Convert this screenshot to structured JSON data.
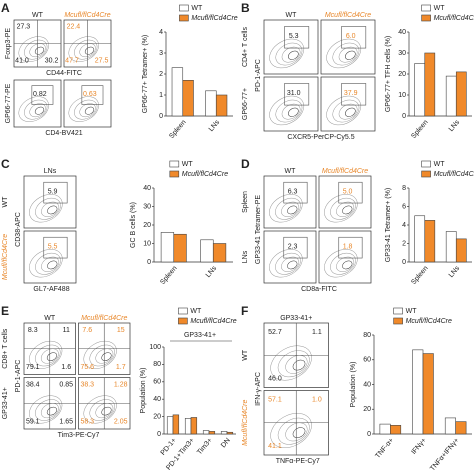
{
  "chart_data": [
    {
      "type": "bar",
      "y_label": "GP66-77+ Tetramer+ (%)",
      "categories": [
        "Spleen",
        "LNs"
      ],
      "series": [
        {
          "name": "WT",
          "color": "#ffffff",
          "values": [
            2.3,
            1.2
          ]
        },
        {
          "name": "Mcufl/flCd4Cre",
          "color": "#f0892a",
          "values": [
            1.7,
            1.0
          ]
        }
      ],
      "ylim": [
        0,
        4
      ],
      "yticks": [
        0,
        1,
        2,
        3,
        4
      ]
    },
    {
      "type": "bar",
      "y_label": "GP66-77+ TFH cells (%)",
      "categories": [
        "Spleen",
        "LNs"
      ],
      "series": [
        {
          "name": "WT",
          "color": "#ffffff",
          "values": [
            25,
            19
          ]
        },
        {
          "name": "Mcufl/flCd4Cre",
          "color": "#f0892a",
          "values": [
            30,
            21
          ]
        }
      ],
      "ylim": [
        0,
        40
      ],
      "yticks": [
        0,
        10,
        20,
        30,
        40
      ]
    },
    {
      "type": "bar",
      "y_label": "GC B cells (%)",
      "categories": [
        "Spleen",
        "LNs"
      ],
      "series": [
        {
          "name": "WT",
          "color": "#ffffff",
          "values": [
            16,
            12
          ]
        },
        {
          "name": "Mcufl/flCd4Cre",
          "color": "#f0892a",
          "values": [
            15,
            10
          ]
        }
      ],
      "ylim": [
        0,
        40
      ],
      "yticks": [
        0,
        10,
        20,
        30,
        40
      ]
    },
    {
      "type": "bar",
      "y_label": "GP33-41 Tetramer+ (%)",
      "categories": [
        "Spleen",
        "LNs"
      ],
      "series": [
        {
          "name": "WT",
          "color": "#ffffff",
          "values": [
            5,
            3.3
          ]
        },
        {
          "name": "Mcufl/flCd4Cre",
          "color": "#f0892a",
          "values": [
            4.5,
            2.5
          ]
        }
      ],
      "ylim": [
        0,
        8
      ],
      "yticks": [
        0,
        2,
        4,
        6,
        8
      ]
    },
    {
      "type": "bar",
      "title": "GP33-41+",
      "y_label": "Population (%)",
      "categories": [
        "PD-1+",
        "PD-1+Tim3+",
        "Tim3+",
        "DN"
      ],
      "series": [
        {
          "name": "WT",
          "color": "#ffffff",
          "values": [
            20,
            18,
            4,
            3
          ]
        },
        {
          "name": "Mcufl/flCd4Cre",
          "color": "#f0892a",
          "values": [
            22,
            19,
            3,
            2
          ]
        }
      ],
      "ylim": [
        0,
        100
      ],
      "yticks": [
        0,
        20,
        40,
        60,
        80,
        100
      ]
    },
    {
      "type": "bar",
      "y_label": "Population (%)",
      "categories": [
        "TNF-α+",
        "IFNγ+",
        "TNFα+IFNγ+"
      ],
      "series": [
        {
          "name": "WT",
          "color": "#ffffff",
          "values": [
            8,
            68,
            13
          ]
        },
        {
          "name": "Mcufl/flCd4Cre",
          "color": "#f0892a",
          "values": [
            7,
            65,
            10
          ]
        }
      ],
      "ylim": [
        0,
        80
      ],
      "yticks": [
        0,
        20,
        40,
        60,
        80
      ]
    }
  ],
  "flow_panels": [
    {
      "letter": "A",
      "column_labels": [
        "WT",
        "Mcufl/flCd4Cre"
      ],
      "y_labels": [
        "Foxp3-PE",
        "GP66-77-PE"
      ],
      "x_labels": [
        "CD44-FITC",
        "CD4-BV421"
      ],
      "plots": [
        [
          [
            "27.3",
            "41.0",
            "30.2"
          ],
          [
            "22.4",
            "47.7",
            "27.5"
          ]
        ],
        [
          [
            "0.82"
          ],
          [
            "0.63"
          ]
        ]
      ]
    },
    {
      "letter": "B",
      "column_labels": [
        "WT",
        "Mcufl/flCd4Cre"
      ],
      "row_labels": [
        "CD4+ T cells",
        "GP66-77+"
      ],
      "y_labels": [
        "PD-1-APC"
      ],
      "x_labels": [
        "CXCR5-PerCP-Cy5.5"
      ],
      "plots": [
        [
          [
            "5.3"
          ],
          [
            "6.0"
          ]
        ],
        [
          [
            "31.0"
          ],
          [
            "37.9"
          ]
        ]
      ]
    },
    {
      "letter": "C",
      "column_labels": [
        "LNs"
      ],
      "row_labels": [
        "WT",
        "Mcufl/flCd4Cre"
      ],
      "y_labels": [
        "CD38-APC"
      ],
      "x_labels": [
        "GL7-AF488"
      ],
      "plots": [
        [
          [
            "5.9"
          ]
        ],
        [
          [
            "5.5"
          ]
        ]
      ]
    },
    {
      "letter": "D",
      "column_labels": [
        "WT",
        "Mcufl/flCd4Cre"
      ],
      "row_labels": [
        "Spleen",
        "LNs"
      ],
      "y_labels": [
        "GP33-41 Tetramer-PE"
      ],
      "x_labels": [
        "CD8a-FITC"
      ],
      "plots": [
        [
          [
            "6.3"
          ],
          [
            "5.0"
          ]
        ],
        [
          [
            "2.3"
          ],
          [
            "1.8"
          ]
        ]
      ]
    },
    {
      "letter": "E",
      "column_labels": [
        "WT",
        "Mcufl/flCd4Cre"
      ],
      "row_labels": [
        "CD8+ T cells",
        "GP33-41+"
      ],
      "y_labels": [
        "PD-1-APC"
      ],
      "x_labels": [
        "Tim3-PE-Cy7"
      ],
      "plots": [
        [
          [
            "8.3",
            "11",
            "79.1",
            "1.6"
          ],
          [
            "7.6",
            "15",
            "75.6",
            "1.7"
          ]
        ],
        [
          [
            "38.4",
            "0.85",
            "59.1",
            "1.65"
          ],
          [
            "38.3",
            "1.28",
            "58.3",
            "2.05"
          ]
        ]
      ]
    },
    {
      "letter": "F",
      "column_labels": [
        "GP33-41+"
      ],
      "row_labels": [
        "WT",
        "Mcufl/flCd4Cre"
      ],
      "y_labels": [
        "IFN-γ-APC"
      ],
      "x_labels": [
        "TNFα-PE-Cy7"
      ],
      "plots": [
        [
          [
            "52.7",
            "1.1",
            "46.0"
          ]
        ],
        [
          [
            "57.1",
            "1.0",
            "41.1"
          ]
        ]
      ]
    }
  ]
}
